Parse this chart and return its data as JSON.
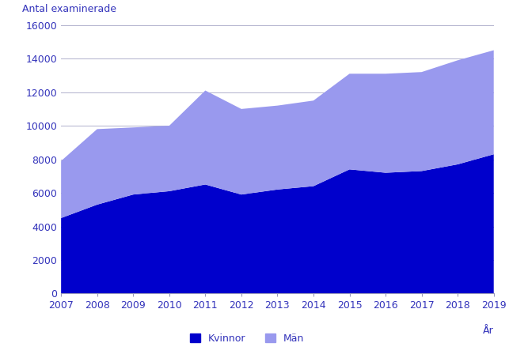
{
  "years": [
    2007,
    2008,
    2009,
    2010,
    2011,
    2012,
    2013,
    2014,
    2015,
    2016,
    2017,
    2018,
    2019
  ],
  "kvinnor": [
    4500,
    5300,
    5900,
    6100,
    6500,
    5900,
    6200,
    6400,
    7400,
    7200,
    7300,
    7700,
    8300
  ],
  "man": [
    3400,
    4500,
    4000,
    3900,
    5600,
    5100,
    5000,
    5100,
    5700,
    5900,
    5900,
    6200,
    6200
  ],
  "color_kvinnor": "#0000CC",
  "color_man": "#9999EE",
  "ylabel": "Antal examinerade",
  "xlabel": "År",
  "ylim": [
    0,
    16000
  ],
  "yticks": [
    0,
    2000,
    4000,
    6000,
    8000,
    10000,
    12000,
    14000,
    16000
  ],
  "legend_kvinnor": "Kvinnor",
  "legend_man": "Män",
  "background_color": "#ffffff",
  "grid_color": "#b0b0cc",
  "tick_color": "#5555aa",
  "label_color": "#3333bb"
}
